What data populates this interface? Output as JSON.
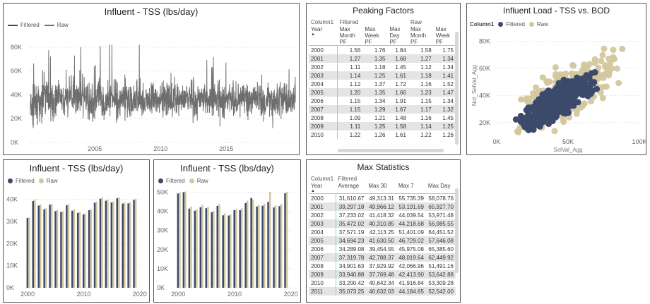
{
  "colors": {
    "filtered": "#3b4a6b",
    "raw": "#d3c79e",
    "line": "#6e6e6e",
    "grid": "#dcdcdc",
    "band": "#e4e4e4",
    "sel": "#8fd3d0"
  },
  "panel1": {
    "title": "Influent - TSS (lbs/day)",
    "legend": [
      "Filtered",
      "Raw"
    ]
  },
  "panel2": {
    "title": "Peaking Factors",
    "group_row": [
      "Column1",
      "Filtered",
      "Raw"
    ],
    "headers": [
      "Year",
      "Max Month PF",
      "Max Week PF",
      "Max Day PF",
      "Max Month PF",
      "Max Week PF"
    ],
    "rows": [
      [
        "2000",
        "1.56",
        "1.76",
        "1.84",
        "1.58",
        "1.75"
      ],
      [
        "2001",
        "1.27",
        "1.35",
        "1.68",
        "1.27",
        "1.34"
      ],
      [
        "2002",
        "1.11",
        "1.18",
        "1.45",
        "1.12",
        "1.34"
      ],
      [
        "2003",
        "1.14",
        "1.25",
        "1.61",
        "1.18",
        "1.41"
      ],
      [
        "2004",
        "1.12",
        "1.37",
        "1.72",
        "1.16",
        "1.52"
      ],
      [
        "2005",
        "1.20",
        "1.35",
        "1.66",
        "1.23",
        "1.47"
      ],
      [
        "2006",
        "1.15",
        "1.34",
        "1.91",
        "1.15",
        "1.34"
      ],
      [
        "2007",
        "1.15",
        "1.29",
        "1.67",
        "1.17",
        "1.32"
      ],
      [
        "2008",
        "1.09",
        "1.21",
        "1.48",
        "1.16",
        "1.45"
      ],
      [
        "2009",
        "1.11",
        "1.25",
        "1.58",
        "1.14",
        "1.25"
      ],
      [
        "2010",
        "1.22",
        "1.26",
        "1.61",
        "1.22",
        "1.26"
      ]
    ]
  },
  "panel3": {
    "title": "Influent Load - TSS vs. BOD",
    "legend_label": "Column1",
    "legend": [
      "Filtered",
      "Raw"
    ],
    "xlabel": "SelVal_Agg",
    "ylabel": "Not_SelVal_Agg"
  },
  "panel4": {
    "title": "Influent - TSS (lbs/day)",
    "legend": [
      "Filtered",
      "Raw"
    ]
  },
  "panel5": {
    "title": "Influent - TSS (lbs/day)",
    "legend": [
      "Filtered",
      "Raw"
    ]
  },
  "panel6": {
    "title": "Max Statistics",
    "group_row": [
      "Column1",
      "Filtered"
    ],
    "headers": [
      "Year",
      "Average",
      "Max 30",
      "Max 7",
      "Max Day"
    ],
    "rows": [
      [
        "2000",
        "31,610.67",
        "49,313.31",
        "55,735.39",
        "58,078.76"
      ],
      [
        "2001",
        "39,297.18",
        "49,966.12",
        "53,191.69",
        "65,927.70"
      ],
      [
        "2002",
        "37,233.02",
        "41,418.32",
        "44,039.54",
        "53,971.48"
      ],
      [
        "2003",
        "35,472.02",
        "40,310.85",
        "44,218.68",
        "56,985.55"
      ],
      [
        "2004",
        "37,571.19",
        "42,113.25",
        "51,401.09",
        "64,451.52"
      ],
      [
        "2005",
        "34,694.23",
        "41,630.50",
        "46,729.02",
        "57,646.08"
      ],
      [
        "2006",
        "34,289.08",
        "39,454.55",
        "45,975.08",
        "65,385.60"
      ],
      [
        "2007",
        "37,319.78",
        "42,788.37",
        "48,019.64",
        "62,449.92"
      ],
      [
        "2008",
        "34,901.63",
        "37,929.92",
        "42,066.96",
        "51,491.16"
      ],
      [
        "2009",
        "33,940.88",
        "37,769.48",
        "42,413.90",
        "53,642.88"
      ],
      [
        "2010",
        "33,200.42",
        "40,642.34",
        "41,916.84",
        "53,309.28"
      ],
      [
        "2011",
        "35,073.25",
        "40,632.03",
        "44,184.65",
        "52,542.00"
      ]
    ]
  },
  "chart_data": [
    {
      "type": "line",
      "title": "Influent - TSS (lbs/day)",
      "series": [
        {
          "name": "Filtered"
        },
        {
          "name": "Raw"
        }
      ],
      "x_ticks": [
        "2005",
        "2010",
        "2015"
      ],
      "xlim": [
        2000.0,
        2020.3
      ],
      "y_ticks": [
        "0K",
        "20K",
        "40K",
        "60K",
        "80K"
      ],
      "ylim": [
        0,
        90000
      ],
      "note_series": "daily values oscillating roughly 20K-60K with peaks to ~80K"
    },
    {
      "type": "scatter",
      "title": "Influent Load - TSS vs. BOD",
      "series": [
        {
          "name": "Filtered"
        },
        {
          "name": "Raw"
        }
      ],
      "xlabel": "SelVal_Agg",
      "ylabel": "Not_SelVal_Agg",
      "x_ticks": [
        "0K",
        "50K",
        "100K"
      ],
      "xlim": [
        0,
        100000
      ],
      "y_ticks": [
        "20K",
        "40K",
        "60K",
        "80K"
      ],
      "ylim": [
        10000,
        85000
      ]
    },
    {
      "type": "bar",
      "title": "Influent - TSS (lbs/day)",
      "x_ticks": [
        "2000",
        "2010",
        "2020"
      ],
      "y_ticks": [
        "0K",
        "10K",
        "20K",
        "30K",
        "40K"
      ],
      "ylim": [
        0,
        45000
      ],
      "categories": [
        "2000",
        "2001",
        "2002",
        "2003",
        "2004",
        "2005",
        "2006",
        "2007",
        "2008",
        "2009",
        "2010",
        "2011",
        "2012",
        "2013",
        "2014",
        "2015",
        "2016",
        "2017",
        "2018",
        "2019"
      ],
      "series": [
        {
          "name": "Filtered",
          "values": [
            31600,
            39300,
            37200,
            35500,
            37600,
            34700,
            34300,
            37300,
            34900,
            33900,
            33200,
            35100,
            38500,
            40300,
            39400,
            38600,
            40500,
            38100,
            38200,
            39800
          ]
        },
        {
          "name": "Raw",
          "values": [
            31900,
            40000,
            37700,
            36000,
            38000,
            35200,
            34700,
            37800,
            35500,
            34300,
            33600,
            35600,
            39000,
            40800,
            39800,
            39100,
            40900,
            38600,
            38700,
            40300
          ]
        }
      ]
    },
    {
      "type": "bar",
      "title": "Influent - TSS (lbs/day)",
      "x_ticks": [
        "2000",
        "2010",
        "2020"
      ],
      "y_ticks": [
        "0K",
        "10K",
        "20K",
        "30K",
        "40K",
        "50K"
      ],
      "ylim": [
        0,
        52000
      ],
      "categories": [
        "2000",
        "2001",
        "2002",
        "2003",
        "2004",
        "2005",
        "2006",
        "2007",
        "2008",
        "2009",
        "2010",
        "2011",
        "2012",
        "2013",
        "2014",
        "2015",
        "2016",
        "2017",
        "2018",
        "2019"
      ],
      "series": [
        {
          "name": "Filtered",
          "values": [
            49300,
            50000,
            41400,
            40300,
            42100,
            41600,
            39500,
            42800,
            37900,
            37800,
            40600,
            40600,
            44300,
            47000,
            42500,
            42900,
            44900,
            42000,
            42700,
            49400
          ]
        },
        {
          "name": "Raw",
          "values": [
            49800,
            50300,
            42400,
            41100,
            43300,
            42300,
            40100,
            43800,
            38900,
            38400,
            41200,
            41600,
            45600,
            46200,
            43400,
            43900,
            50100,
            43100,
            43900,
            50200
          ]
        }
      ]
    }
  ]
}
